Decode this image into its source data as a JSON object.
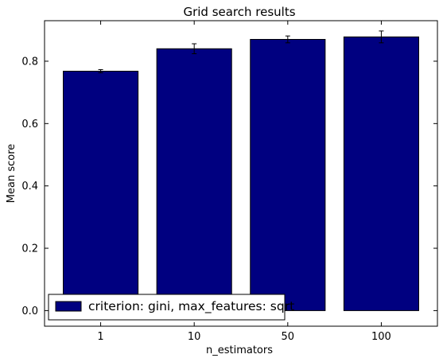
{
  "chart_data": {
    "type": "bar",
    "title": "Grid search results",
    "xlabel": "n_estimators",
    "ylabel": "Mean score",
    "categories": [
      "1",
      "10",
      "50",
      "100"
    ],
    "series": [
      {
        "name": "criterion: gini, max_features: sqrt",
        "values": [
          0.768,
          0.84,
          0.87,
          0.878
        ],
        "errors": [
          0.005,
          0.016,
          0.011,
          0.019
        ],
        "color": "#000080"
      }
    ],
    "ylim": [
      -0.05,
      0.93
    ],
    "yticks": [
      0.0,
      0.2,
      0.4,
      0.6,
      0.8
    ],
    "ytick_labels": [
      "0.0",
      "0.2",
      "0.4",
      "0.6",
      "0.8"
    ],
    "grid": false,
    "error_bars": true,
    "legend_position": "lower-left"
  }
}
